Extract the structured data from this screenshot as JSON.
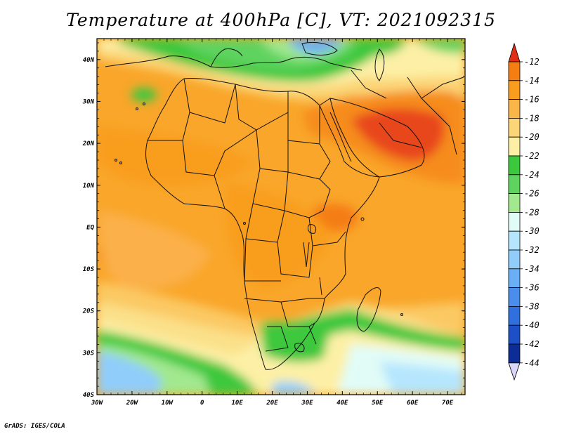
{
  "title": "Temperature at 400hPa [C], VT: 2021092315",
  "footer": "GrADS: IGES/COLA",
  "map": {
    "lon_range": [
      -30,
      75
    ],
    "lat_range": [
      -40,
      45
    ],
    "x_ticks": [
      {
        "value": -30,
        "label": "30W"
      },
      {
        "value": -20,
        "label": "20W"
      },
      {
        "value": -10,
        "label": "10W"
      },
      {
        "value": 0,
        "label": "0"
      },
      {
        "value": 10,
        "label": "10E"
      },
      {
        "value": 20,
        "label": "20E"
      },
      {
        "value": 30,
        "label": "30E"
      },
      {
        "value": 40,
        "label": "40E"
      },
      {
        "value": 50,
        "label": "50E"
      },
      {
        "value": 60,
        "label": "60E"
      },
      {
        "value": 70,
        "label": "70E"
      }
    ],
    "y_ticks": [
      {
        "value": 40,
        "label": "40N"
      },
      {
        "value": 30,
        "label": "30N"
      },
      {
        "value": 20,
        "label": "20N"
      },
      {
        "value": 10,
        "label": "10N"
      },
      {
        "value": 0,
        "label": "EQ"
      },
      {
        "value": -10,
        "label": "10S"
      },
      {
        "value": -20,
        "label": "20S"
      },
      {
        "value": -30,
        "label": "30S"
      },
      {
        "value": -40,
        "label": "40S"
      }
    ]
  },
  "colorbar": {
    "levels": [
      "-12",
      "-14",
      "-16",
      "-18",
      "-20",
      "-22",
      "-24",
      "-26",
      "-28",
      "-30",
      "-32",
      "-34",
      "-36",
      "-38",
      "-40",
      "-42",
      "-44"
    ],
    "colors": [
      "#e8461e",
      "#f57d12",
      "#f99d1e",
      "#fbb64a",
      "#fbd577",
      "#fdf0a6",
      "#3cc83c",
      "#5fd35f",
      "#a2e88f",
      "#e1fcf7",
      "#b5e6fd",
      "#90cdfb",
      "#6aaff5",
      "#4b8deb",
      "#2f6fde",
      "#1d4fc6",
      "#0c2d96",
      "#0a1370"
    ],
    "top_color": "#e02f16",
    "bottom_color": "#d9d6fb"
  }
}
